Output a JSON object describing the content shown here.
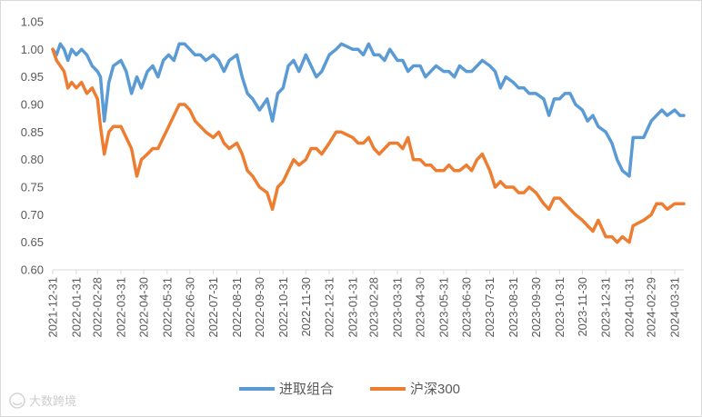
{
  "chart_data": {
    "type": "line",
    "title": "",
    "xlabel": "",
    "ylabel": "",
    "ylim": [
      0.6,
      1.05
    ],
    "yticks": [
      "0.60",
      "0.65",
      "0.70",
      "0.75",
      "0.80",
      "0.85",
      "0.90",
      "0.95",
      "1.00",
      "1.05"
    ],
    "xticks": [
      "2021-12-31",
      "2022-01-31",
      "2022-02-28",
      "2022-03-31",
      "2022-04-30",
      "2022-05-31",
      "2022-06-30",
      "2022-07-31",
      "2022-08-31",
      "2022-09-30",
      "2022-10-31",
      "2022-11-30",
      "2022-12-31",
      "2023-01-31",
      "2023-02-28",
      "2023-03-31",
      "2023-04-30",
      "2023-05-31",
      "2023-06-30",
      "2023-07-31",
      "2023-08-31",
      "2023-09-30",
      "2023-10-31",
      "2023-11-30",
      "2023-12-31",
      "2024-01-31",
      "2024-02-29",
      "2024-03-31"
    ],
    "grid": false,
    "legend": "bottom",
    "series": [
      {
        "name": "进取组合",
        "color": "#5B9BD5",
        "x": [
          "2021-12-31",
          "2022-01-05",
          "2022-01-10",
          "2022-01-15",
          "2022-01-20",
          "2022-01-25",
          "2022-01-31",
          "2022-02-07",
          "2022-02-14",
          "2022-02-21",
          "2022-02-28",
          "2022-03-04",
          "2022-03-09",
          "2022-03-15",
          "2022-03-21",
          "2022-03-31",
          "2022-04-07",
          "2022-04-14",
          "2022-04-21",
          "2022-04-27",
          "2022-05-05",
          "2022-05-12",
          "2022-05-19",
          "2022-05-26",
          "2022-06-02",
          "2022-06-09",
          "2022-06-16",
          "2022-06-23",
          "2022-06-30",
          "2022-07-07",
          "2022-07-14",
          "2022-07-21",
          "2022-07-31",
          "2022-08-07",
          "2022-08-14",
          "2022-08-21",
          "2022-08-31",
          "2022-09-07",
          "2022-09-14",
          "2022-09-21",
          "2022-09-30",
          "2022-10-10",
          "2022-10-17",
          "2022-10-24",
          "2022-10-31",
          "2022-11-07",
          "2022-11-14",
          "2022-11-21",
          "2022-11-30",
          "2022-12-07",
          "2022-12-14",
          "2022-12-21",
          "2022-12-31",
          "2023-01-09",
          "2023-01-16",
          "2023-01-31",
          "2023-02-07",
          "2023-02-14",
          "2023-02-21",
          "2023-02-28",
          "2023-03-07",
          "2023-03-14",
          "2023-03-21",
          "2023-03-31",
          "2023-04-07",
          "2023-04-14",
          "2023-04-21",
          "2023-04-30",
          "2023-05-07",
          "2023-05-14",
          "2023-05-21",
          "2023-05-31",
          "2023-06-07",
          "2023-06-14",
          "2023-06-21",
          "2023-06-30",
          "2023-07-07",
          "2023-07-14",
          "2023-07-21",
          "2023-07-31",
          "2023-08-07",
          "2023-08-14",
          "2023-08-21",
          "2023-08-31",
          "2023-09-07",
          "2023-09-14",
          "2023-09-21",
          "2023-09-30",
          "2023-10-10",
          "2023-10-17",
          "2023-10-24",
          "2023-10-31",
          "2023-11-07",
          "2023-11-14",
          "2023-11-21",
          "2023-11-30",
          "2023-12-07",
          "2023-12-14",
          "2023-12-21",
          "2023-12-31",
          "2024-01-08",
          "2024-01-15",
          "2024-01-22",
          "2024-01-31",
          "2024-02-05",
          "2024-02-19",
          "2024-02-29",
          "2024-03-07",
          "2024-03-14",
          "2024-03-21",
          "2024-03-31",
          "2024-04-07",
          "2024-04-12"
        ],
        "values": [
          1.0,
          0.99,
          1.01,
          1.0,
          0.98,
          1.0,
          0.99,
          1.0,
          0.99,
          0.97,
          0.96,
          0.95,
          0.87,
          0.94,
          0.97,
          0.98,
          0.96,
          0.92,
          0.95,
          0.93,
          0.96,
          0.97,
          0.95,
          0.98,
          0.99,
          0.98,
          1.01,
          1.01,
          1.0,
          0.99,
          0.99,
          0.98,
          0.99,
          0.98,
          0.96,
          0.98,
          0.99,
          0.95,
          0.92,
          0.91,
          0.89,
          0.91,
          0.87,
          0.92,
          0.93,
          0.97,
          0.98,
          0.96,
          0.99,
          0.97,
          0.95,
          0.96,
          0.99,
          1.0,
          1.01,
          1.0,
          1.0,
          0.99,
          1.01,
          0.99,
          0.99,
          0.98,
          1.0,
          0.98,
          0.98,
          0.96,
          0.97,
          0.97,
          0.95,
          0.96,
          0.97,
          0.96,
          0.96,
          0.95,
          0.97,
          0.96,
          0.96,
          0.97,
          0.98,
          0.97,
          0.96,
          0.93,
          0.95,
          0.94,
          0.93,
          0.93,
          0.92,
          0.92,
          0.91,
          0.88,
          0.91,
          0.91,
          0.92,
          0.92,
          0.9,
          0.89,
          0.87,
          0.88,
          0.86,
          0.85,
          0.83,
          0.8,
          0.78,
          0.77,
          0.84,
          0.84,
          0.87,
          0.88,
          0.89,
          0.88,
          0.89,
          0.88,
          0.88
        ]
      },
      {
        "name": "沪深300",
        "color": "#ED7D31",
        "x": [
          "2021-12-31",
          "2022-01-05",
          "2022-01-10",
          "2022-01-15",
          "2022-01-20",
          "2022-01-25",
          "2022-01-31",
          "2022-02-07",
          "2022-02-14",
          "2022-02-21",
          "2022-02-28",
          "2022-03-04",
          "2022-03-09",
          "2022-03-15",
          "2022-03-21",
          "2022-03-31",
          "2022-04-07",
          "2022-04-14",
          "2022-04-21",
          "2022-04-27",
          "2022-05-05",
          "2022-05-12",
          "2022-05-19",
          "2022-05-26",
          "2022-06-02",
          "2022-06-09",
          "2022-06-16",
          "2022-06-23",
          "2022-06-30",
          "2022-07-07",
          "2022-07-14",
          "2022-07-21",
          "2022-07-31",
          "2022-08-07",
          "2022-08-14",
          "2022-08-21",
          "2022-08-31",
          "2022-09-07",
          "2022-09-14",
          "2022-09-21",
          "2022-09-30",
          "2022-10-10",
          "2022-10-17",
          "2022-10-24",
          "2022-10-31",
          "2022-11-07",
          "2022-11-14",
          "2022-11-21",
          "2022-11-30",
          "2022-12-07",
          "2022-12-14",
          "2022-12-21",
          "2022-12-31",
          "2023-01-09",
          "2023-01-16",
          "2023-01-31",
          "2023-02-07",
          "2023-02-14",
          "2023-02-21",
          "2023-02-28",
          "2023-03-07",
          "2023-03-14",
          "2023-03-21",
          "2023-03-31",
          "2023-04-07",
          "2023-04-14",
          "2023-04-21",
          "2023-04-30",
          "2023-05-07",
          "2023-05-14",
          "2023-05-21",
          "2023-05-31",
          "2023-06-07",
          "2023-06-14",
          "2023-06-21",
          "2023-06-30",
          "2023-07-07",
          "2023-07-14",
          "2023-07-21",
          "2023-07-31",
          "2023-08-07",
          "2023-08-14",
          "2023-08-21",
          "2023-08-31",
          "2023-09-07",
          "2023-09-14",
          "2023-09-21",
          "2023-09-30",
          "2023-10-10",
          "2023-10-17",
          "2023-10-24",
          "2023-10-31",
          "2023-11-07",
          "2023-11-14",
          "2023-11-21",
          "2023-11-30",
          "2023-12-07",
          "2023-12-14",
          "2023-12-21",
          "2023-12-31",
          "2024-01-08",
          "2024-01-15",
          "2024-01-22",
          "2024-01-31",
          "2024-02-05",
          "2024-02-19",
          "2024-02-29",
          "2024-03-07",
          "2024-03-14",
          "2024-03-21",
          "2024-03-31",
          "2024-04-07",
          "2024-04-12"
        ],
        "values": [
          1.0,
          0.98,
          0.97,
          0.96,
          0.93,
          0.94,
          0.93,
          0.94,
          0.92,
          0.93,
          0.91,
          0.86,
          0.81,
          0.85,
          0.86,
          0.86,
          0.84,
          0.82,
          0.77,
          0.8,
          0.81,
          0.82,
          0.82,
          0.84,
          0.86,
          0.88,
          0.9,
          0.9,
          0.89,
          0.87,
          0.86,
          0.85,
          0.84,
          0.85,
          0.83,
          0.82,
          0.83,
          0.81,
          0.78,
          0.77,
          0.75,
          0.74,
          0.71,
          0.75,
          0.76,
          0.78,
          0.8,
          0.79,
          0.8,
          0.82,
          0.82,
          0.81,
          0.83,
          0.85,
          0.85,
          0.84,
          0.83,
          0.83,
          0.84,
          0.82,
          0.81,
          0.82,
          0.83,
          0.83,
          0.82,
          0.84,
          0.8,
          0.8,
          0.79,
          0.79,
          0.78,
          0.78,
          0.79,
          0.78,
          0.78,
          0.79,
          0.78,
          0.8,
          0.81,
          0.78,
          0.75,
          0.76,
          0.75,
          0.75,
          0.74,
          0.74,
          0.75,
          0.74,
          0.72,
          0.71,
          0.73,
          0.73,
          0.72,
          0.71,
          0.7,
          0.69,
          0.68,
          0.67,
          0.69,
          0.66,
          0.66,
          0.65,
          0.66,
          0.65,
          0.68,
          0.69,
          0.7,
          0.72,
          0.72,
          0.71,
          0.72,
          0.72,
          0.72
        ]
      }
    ]
  },
  "watermark": {
    "text": "大数跨境",
    "icon": "smile-logo-icon"
  }
}
